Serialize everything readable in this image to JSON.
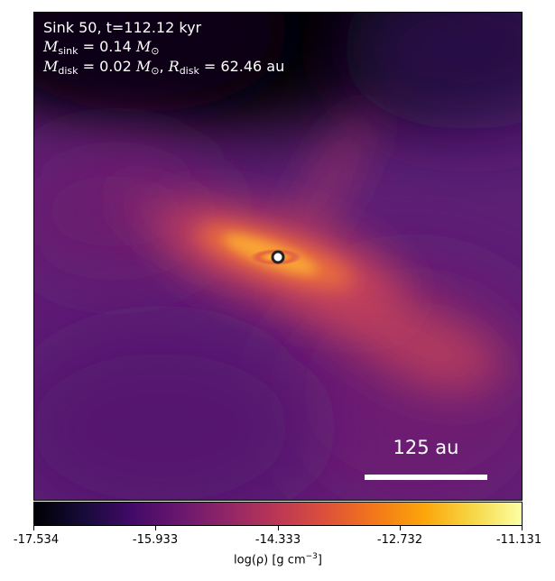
{
  "panel": {
    "title_line": "Sink 50, t=112.12 kyr",
    "sink_mass": {
      "symbol": "M",
      "subscript": "sink",
      "value": "= 0.14",
      "unit": "M",
      "unit_sub": "⊙"
    },
    "disk": {
      "mass_symbol": "M",
      "mass_subscript": "disk",
      "mass_value": "= 0.02",
      "mass_unit": "M",
      "mass_unit_sub": "⊙",
      "separator": ",",
      "radius_symbol": "R",
      "radius_subscript": "disk",
      "radius_value": "= 62.46 au"
    },
    "scale_bar_label": "125 au"
  },
  "colorbar": {
    "ticks": [
      "-17.534",
      "-15.933",
      "-14.333",
      "-12.732",
      "-11.131"
    ],
    "label_main": "log(ρ) [g cm",
    "label_exp": "−3",
    "label_end": "]",
    "colormap": "inferno"
  },
  "colors": {
    "background": "#5a1f75",
    "sink_marker_edge": "#222222",
    "sink_marker_fill": "#ffffff",
    "text": "#ffffff"
  }
}
